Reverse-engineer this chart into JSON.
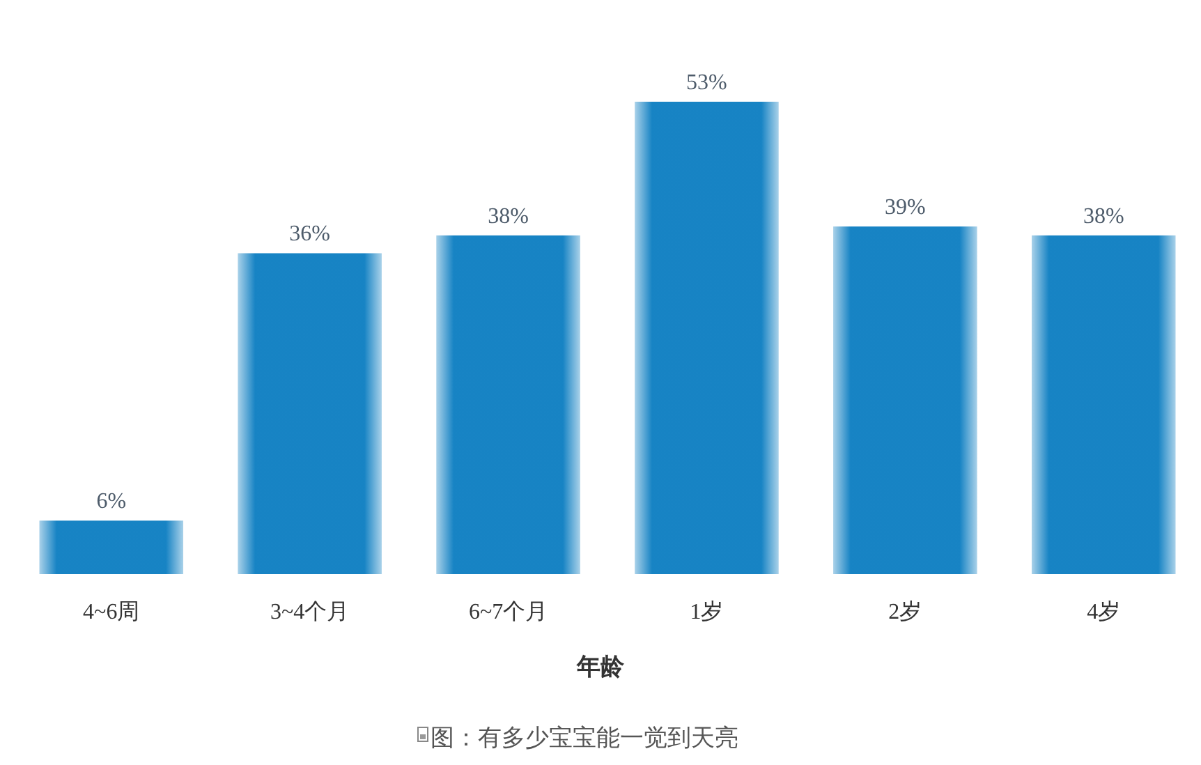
{
  "chart_data": {
    "type": "bar",
    "categories": [
      "4~6周",
      "3~4个月",
      "6~7个月",
      "1岁",
      "2岁",
      "4岁"
    ],
    "values": [
      6,
      36,
      38,
      53,
      39,
      38
    ],
    "value_labels": [
      "6%",
      "36%",
      "38%",
      "53%",
      "39%",
      "38%"
    ],
    "color": "#0b7dc1",
    "xlabel": "年龄",
    "annotations": [
      "图：有多少宝宝能一觉到天亮"
    ]
  }
}
